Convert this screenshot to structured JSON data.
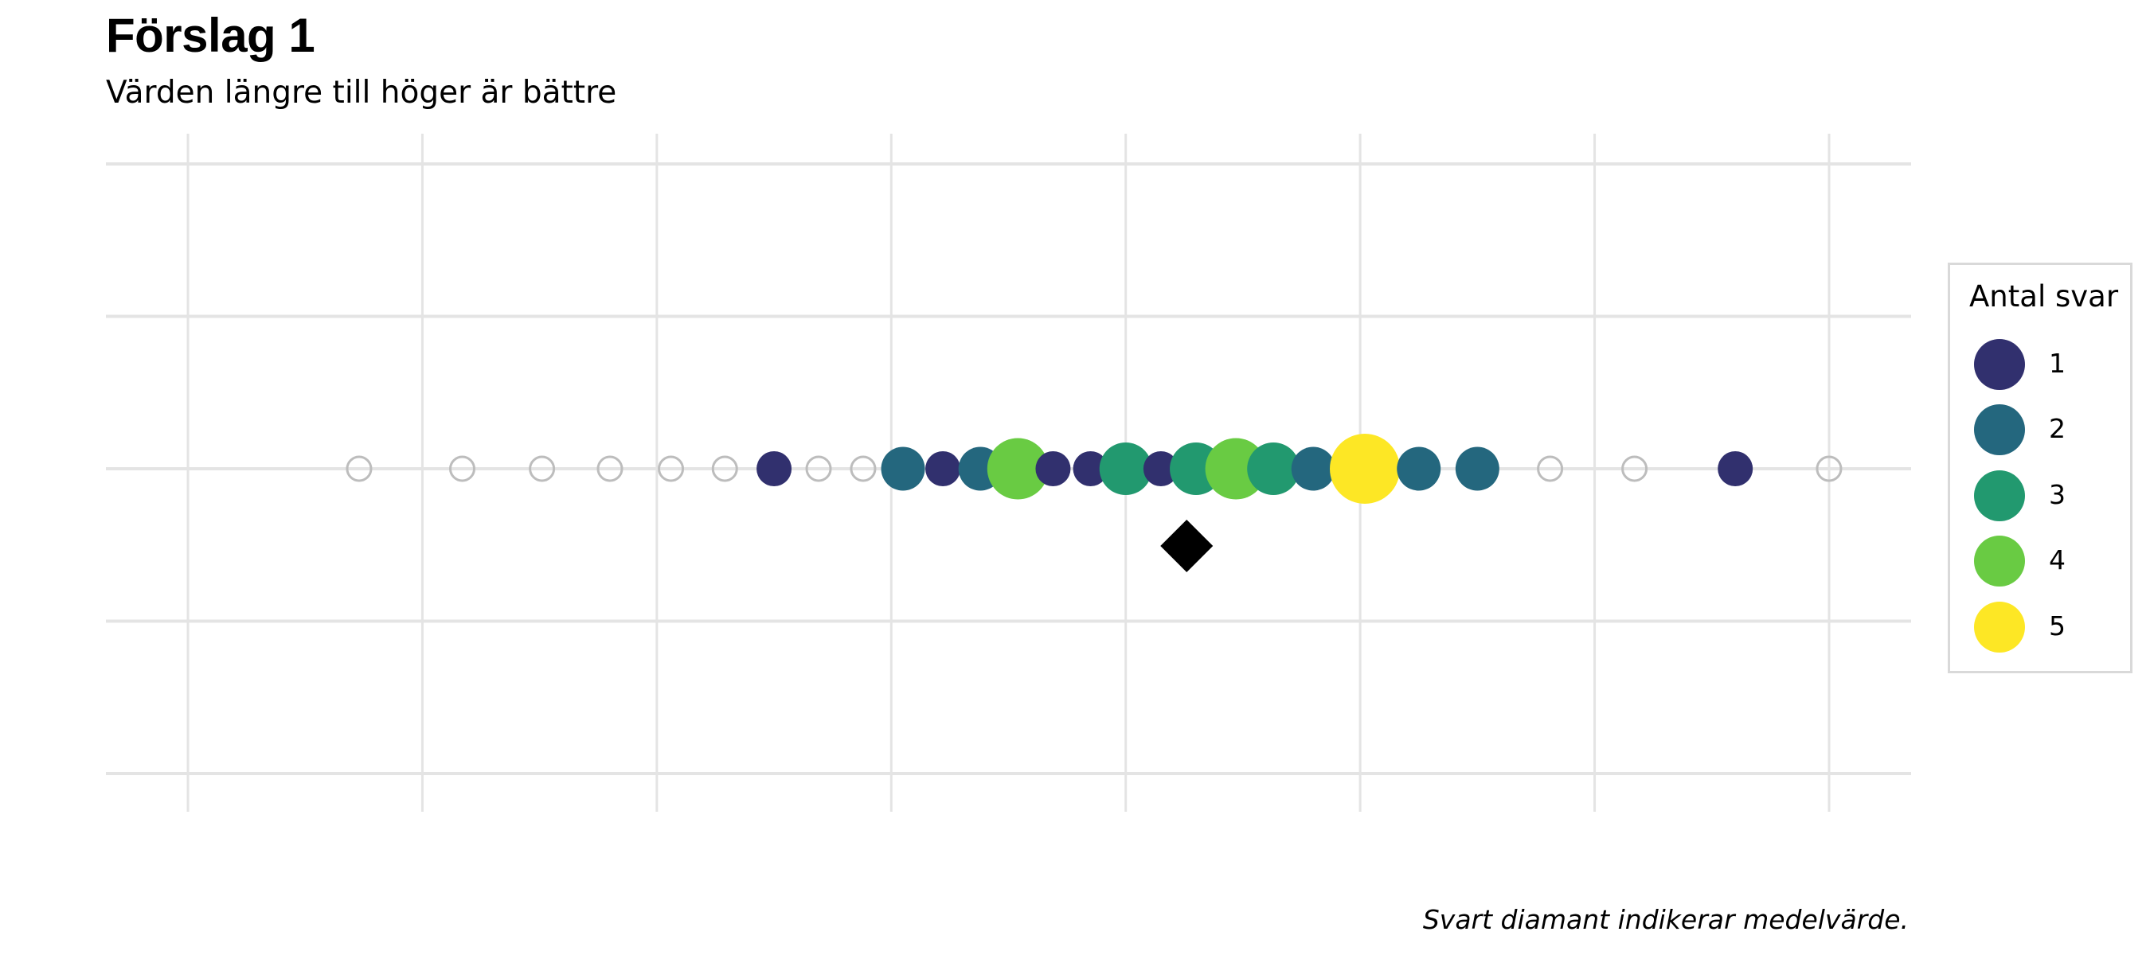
{
  "chart_data": {
    "type": "scatter",
    "title": "Förslag 1",
    "subtitle": "Värden längre till höger är bättre",
    "caption": "Svart diamant indikerar medelvärde.",
    "legend": {
      "title": "Antal svar",
      "placement": "right",
      "entries": [
        {
          "label": "1",
          "count": 1,
          "color": "#31306e"
        },
        {
          "label": "2",
          "count": 2,
          "color": "#24677e"
        },
        {
          "label": "3",
          "count": 3,
          "color": "#22996f"
        },
        {
          "label": "4",
          "count": 4,
          "color": "#69cb43"
        },
        {
          "label": "5",
          "count": 5,
          "color": "#fde725"
        }
      ]
    },
    "grid": true,
    "xlim": [
      -3.35,
      4.35
    ],
    "ylim": [
      -2,
      2
    ],
    "x_gridlines": [
      -3,
      -2,
      -1,
      0,
      1,
      2,
      3,
      4
    ],
    "y_gridlines": [
      -2,
      -1,
      0,
      1,
      2
    ],
    "empty_points": [
      -2.27,
      -1.83,
      -1.49,
      -1.2,
      -0.94,
      -0.71,
      -0.31,
      -0.12,
      2.81,
      3.17,
      4.0
    ],
    "filled_points": [
      {
        "x": -0.5,
        "count": 1
      },
      {
        "x": 0.05,
        "count": 2
      },
      {
        "x": 0.22,
        "count": 1
      },
      {
        "x": 0.38,
        "count": 2
      },
      {
        "x": 0.54,
        "count": 4
      },
      {
        "x": 0.69,
        "count": 1
      },
      {
        "x": 0.85,
        "count": 1
      },
      {
        "x": 1.0,
        "count": 3
      },
      {
        "x": 1.15,
        "count": 1
      },
      {
        "x": 1.3,
        "count": 3
      },
      {
        "x": 1.47,
        "count": 4
      },
      {
        "x": 1.63,
        "count": 3
      },
      {
        "x": 1.8,
        "count": 2
      },
      {
        "x": 2.02,
        "count": 5
      },
      {
        "x": 2.25,
        "count": 2
      },
      {
        "x": 2.5,
        "count": 2
      },
      {
        "x": 3.6,
        "count": 1
      }
    ],
    "mean": 1.26
  }
}
